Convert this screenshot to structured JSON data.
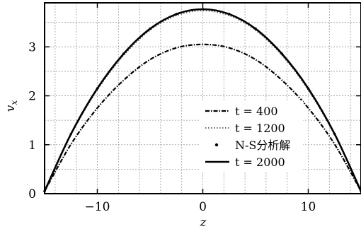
{
  "chart_data": {
    "type": "line",
    "xlabel": "z",
    "ylabel": "v_x",
    "xlim": [
      -15,
      15
    ],
    "ylim": [
      0,
      3.9
    ],
    "x_ticks": [
      -10,
      0,
      10
    ],
    "x_tick_labels": [
      "−10",
      "0",
      "10"
    ],
    "y_ticks": [
      0,
      1,
      2,
      3
    ],
    "y_tick_labels": [
      "0",
      "1",
      "2",
      "3"
    ],
    "grid": true,
    "legend_position": "lower-right",
    "series": [
      {
        "name": "t = 400",
        "style": "dash-dot",
        "x": [
          -15,
          -12.5,
          -10,
          -7.5,
          -5,
          -2.5,
          0,
          2.5,
          5,
          7.5,
          10,
          12.5,
          15
        ],
        "y": [
          0.05,
          1.01,
          1.75,
          2.32,
          2.74,
          2.98,
          3.05,
          2.98,
          2.74,
          2.32,
          1.75,
          1.01,
          0.05
        ]
      },
      {
        "name": "t = 1200",
        "style": "dotted",
        "x": [
          -15,
          -12.5,
          -10,
          -7.5,
          -5,
          -2.5,
          0,
          2.5,
          5,
          7.5,
          10,
          12.5,
          15
        ],
        "y": [
          0.05,
          1.2,
          2.12,
          2.83,
          3.34,
          3.64,
          3.74,
          3.64,
          3.34,
          2.83,
          2.12,
          1.2,
          0.05
        ]
      },
      {
        "name": "N-S分析解",
        "style": "dots",
        "x": [
          -15,
          -12.5,
          -10,
          -7.5,
          -5,
          -2.5,
          0,
          2.5,
          5,
          7.5,
          10,
          12.5,
          15
        ],
        "y": [
          0.05,
          1.22,
          2.15,
          2.86,
          3.37,
          3.67,
          3.77,
          3.67,
          3.37,
          2.86,
          2.15,
          1.22,
          0.05
        ]
      },
      {
        "name": "t = 2000",
        "style": "solid",
        "x": [
          -15,
          -12.5,
          -10,
          -7.5,
          -5,
          -2.5,
          0,
          2.5,
          5,
          7.5,
          10,
          12.5,
          15
        ],
        "y": [
          0.05,
          1.22,
          2.15,
          2.86,
          3.37,
          3.67,
          3.77,
          3.67,
          3.37,
          2.86,
          2.15,
          1.22,
          0.05
        ]
      }
    ]
  }
}
